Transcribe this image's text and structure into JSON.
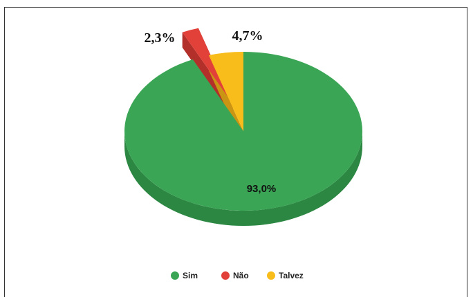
{
  "chart_data": {
    "type": "pie",
    "title": "",
    "slices": [
      {
        "label": "Sim",
        "value": 93.0,
        "display": "93,0%",
        "color": "#3aa655",
        "side": "#2b8742"
      },
      {
        "label": "Não",
        "value": 2.3,
        "display": "2,3%",
        "color": "#e2413a",
        "side": "#b32f2a"
      },
      {
        "label": "Talvez",
        "value": 4.7,
        "display": "4,7%",
        "color": "#f8bd1b",
        "side": "#c99512"
      }
    ],
    "legend": {
      "position": "bottom"
    }
  }
}
